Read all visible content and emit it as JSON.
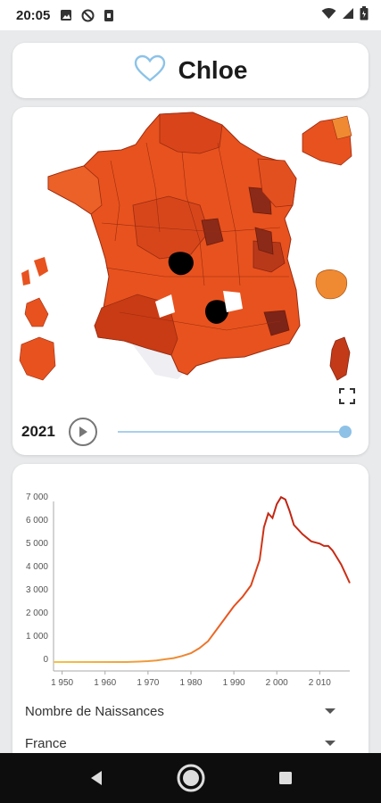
{
  "status_bar": {
    "time": "20:05",
    "left_icons": [
      "image-icon",
      "sync-blocked-icon",
      "sim-card-icon"
    ],
    "right_icons": [
      "wifi-icon",
      "signal-icon",
      "battery-icon"
    ]
  },
  "header": {
    "name": "Chloe",
    "favorite_icon": "heart-outline-icon",
    "accent_color": "#8cc3e8"
  },
  "map": {
    "year": "2021",
    "play_icon": "play-icon",
    "fullscreen_icon": "fullscreen-icon",
    "slider_value": 1.0,
    "region_color_scale": [
      "#f08a32",
      "#e8521e",
      "#c93b14",
      "#9e2b10",
      "#6d1c0c",
      "#000000"
    ]
  },
  "chart_data": {
    "type": "line",
    "xlabel": "",
    "ylabel": "",
    "xlim": [
      1948,
      2017
    ],
    "ylim": [
      0,
      7300
    ],
    "x_ticks": [
      "1 950",
      "1 960",
      "1 970",
      "1 980",
      "1 990",
      "2 000",
      "2 010"
    ],
    "y_ticks": [
      "0",
      "1 000",
      "2 000",
      "3 000",
      "4 000",
      "5 000",
      "6 000",
      "7 000"
    ],
    "series": [
      {
        "x": [
          1948,
          1950,
          1952,
          1965,
          1968,
          1970,
          1972,
          1974,
          1976,
          1978,
          1980,
          1982,
          1984,
          1986,
          1988,
          1990,
          1992,
          1994,
          1996,
          1997,
          1998,
          1999,
          2000,
          2001,
          2002,
          2003,
          2004,
          2006,
          2008,
          2010,
          2011,
          2012,
          2013,
          2014,
          2015,
          2016,
          2017
        ],
        "y": [
          0,
          0,
          0,
          0,
          20,
          40,
          70,
          120,
          170,
          260,
          380,
          600,
          900,
          1400,
          1900,
          2400,
          2800,
          3300,
          4400,
          5800,
          6400,
          6200,
          6800,
          7100,
          7000,
          6500,
          5900,
          5500,
          5200,
          5100,
          5000,
          5000,
          4800,
          4500,
          4200,
          3800,
          3400
        ]
      }
    ],
    "colors": {
      "low": "#f3c24a",
      "high": "#b3140f"
    }
  },
  "controls": {
    "metric_dropdown": "Nombre de Naissances",
    "area_dropdown": "France"
  },
  "nav_bar": {
    "back_icon": "back-triangle-icon",
    "home_icon": "home-circle-icon",
    "recents_icon": "recents-square-icon"
  }
}
